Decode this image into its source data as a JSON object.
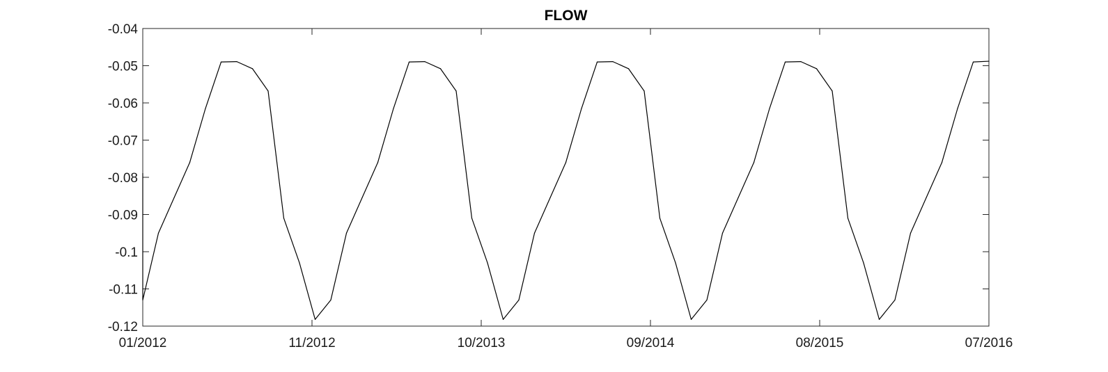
{
  "chart_data": {
    "type": "line",
    "title": "FLOW",
    "xlabel": "",
    "ylabel": "",
    "x_tick_labels": [
      "01/2012",
      "11/2012",
      "10/2013",
      "09/2014",
      "08/2015",
      "07/2016"
    ],
    "y_tick_labels": [
      "-0.04",
      "-0.05",
      "-0.06",
      "-0.07",
      "-0.08",
      "-0.09",
      "-0.1",
      "-0.11",
      "-0.12"
    ],
    "ylim": [
      -0.12,
      -0.04
    ],
    "xlim": [
      "2012-01",
      "2016-07"
    ],
    "grid": false,
    "series": [
      {
        "color": "#000000",
        "x": [
          "2012-01",
          "2012-01",
          "2012-02",
          "2012-03",
          "2012-04",
          "2012-05",
          "2012-06",
          "2012-07",
          "2012-08",
          "2012-09",
          "2012-10",
          "2012-11",
          "2012-12",
          "2013-01",
          "2013-02",
          "2013-03",
          "2013-04",
          "2013-05",
          "2013-06",
          "2013-07",
          "2013-08",
          "2013-09",
          "2013-10",
          "2013-11",
          "2013-12",
          "2014-01",
          "2014-02",
          "2014-03",
          "2014-04",
          "2014-05",
          "2014-06",
          "2014-07",
          "2014-08",
          "2014-09",
          "2014-10",
          "2014-11",
          "2014-12",
          "2015-01",
          "2015-02",
          "2015-03",
          "2015-04",
          "2015-05",
          "2015-06",
          "2015-07",
          "2015-08",
          "2015-09",
          "2015-10",
          "2015-11",
          "2015-12",
          "2016-01",
          "2016-02",
          "2016-03",
          "2016-04",
          "2016-05",
          "2016-06",
          "2016-07"
        ],
        "y": [
          -0.079,
          -0.113,
          -0.095,
          -0.0855,
          -0.076,
          -0.0615,
          -0.049,
          -0.0489,
          -0.0508,
          -0.0568,
          -0.091,
          -0.103,
          -0.1182,
          -0.113,
          -0.095,
          -0.0855,
          -0.076,
          -0.0615,
          -0.049,
          -0.0489,
          -0.0508,
          -0.0568,
          -0.091,
          -0.103,
          -0.1182,
          -0.113,
          -0.095,
          -0.0855,
          -0.076,
          -0.0615,
          -0.049,
          -0.0489,
          -0.0508,
          -0.0568,
          -0.091,
          -0.103,
          -0.1182,
          -0.113,
          -0.095,
          -0.0855,
          -0.076,
          -0.0615,
          -0.049,
          -0.0489,
          -0.0508,
          -0.0568,
          -0.091,
          -0.103,
          -0.1182,
          -0.113,
          -0.095,
          -0.0855,
          -0.076,
          -0.0615,
          -0.049,
          -0.0488
        ]
      }
    ]
  }
}
